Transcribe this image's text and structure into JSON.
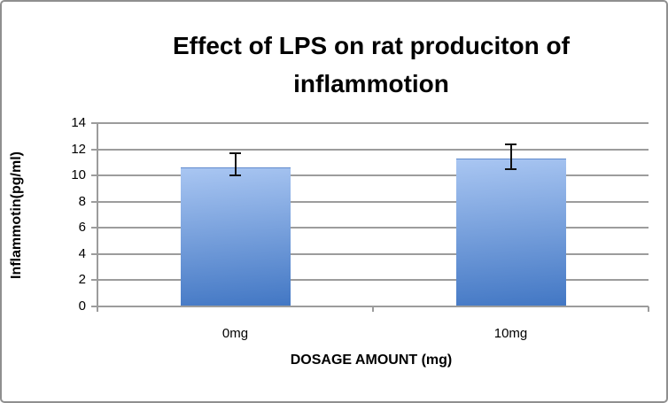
{
  "figure": {
    "title_lines": [
      "Effect of LPS on rat produciton of",
      "inflammotion"
    ],
    "border_color": "#8f8f8f",
    "background_color": "#ffffff"
  },
  "chart_data": {
    "type": "bar",
    "title": "Effect of LPS on rat produciton of inflammotion",
    "xlabel": "DOSAGE AMOUNT (mg)",
    "ylabel": "Inflammotin(pg/ml)",
    "categories": [
      "0mg",
      "10mg"
    ],
    "values": [
      10.6,
      11.3
    ],
    "error_bars": [
      {
        "low": 10.0,
        "high": 11.7
      },
      {
        "low": 10.5,
        "high": 12.4
      }
    ],
    "ylim": [
      0,
      14
    ],
    "yticks": [
      0,
      2,
      4,
      6,
      8,
      10,
      12,
      14
    ],
    "grid": true,
    "legend": "none",
    "colors": {
      "bar_gradient_top": "#a9c6f2",
      "bar_gradient_bottom": "#4277c4",
      "gridline": "#9c9c9c",
      "axis": "#9c9c9c",
      "error_bar": "#111111",
      "text": "#000000"
    }
  }
}
